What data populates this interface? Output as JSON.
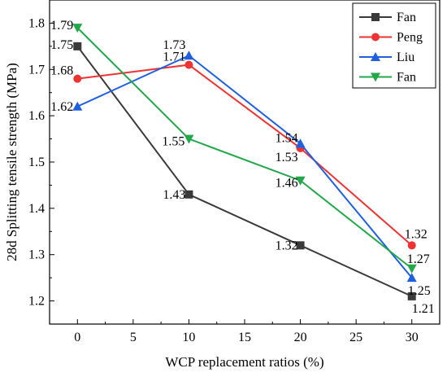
{
  "chart_data": {
    "type": "line",
    "xlabel": "WCP replacement ratios (%)",
    "ylabel": "28d Splitting tensile strength (MPa)",
    "xlim": [
      -2.5,
      32.5
    ],
    "ylim": [
      1.15,
      1.85
    ],
    "x_ticks": [
      0,
      5,
      10,
      15,
      20,
      25,
      30
    ],
    "y_ticks": [
      1.2,
      1.3,
      1.4,
      1.5,
      1.6,
      1.7,
      1.8
    ],
    "grid": false,
    "legend_position": "top-right",
    "x": [
      0,
      10,
      20,
      30
    ],
    "series": [
      {
        "name": "Fan",
        "values": [
          1.75,
          1.43,
          1.32,
          1.21
        ],
        "color": "#3a3a3a",
        "marker": "square",
        "labels": [
          "1.75",
          "1.43",
          "1.32",
          "1.21"
        ]
      },
      {
        "name": "Peng",
        "values": [
          1.68,
          1.71,
          1.53,
          1.32
        ],
        "color": "#ee3333",
        "marker": "circle",
        "labels": [
          "1.68",
          "1.71",
          "1.53",
          "1.32"
        ]
      },
      {
        "name": "Liu",
        "values": [
          1.62,
          1.73,
          1.54,
          1.25
        ],
        "color": "#1f5fe0",
        "marker": "triangle-up",
        "labels": [
          "1.62",
          "1.73",
          "1.54",
          "1.25"
        ]
      },
      {
        "name": "Fan",
        "values": [
          1.79,
          1.55,
          1.46,
          1.27
        ],
        "color": "#22a84a",
        "marker": "triangle-down",
        "labels": [
          "1.79",
          "1.55",
          "1.46",
          "1.27"
        ]
      }
    ]
  }
}
